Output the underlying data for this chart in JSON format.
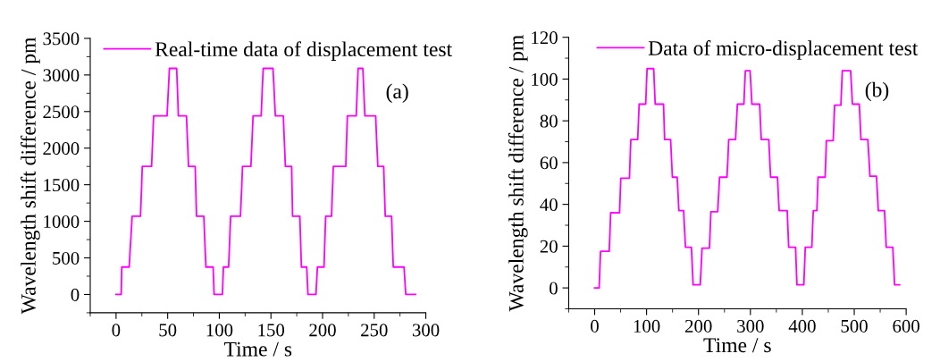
{
  "chart_data": [
    {
      "type": "line",
      "xlabel": "Time / s",
      "ylabel": "Wavelength shift difference / pm",
      "xlim": [
        -25,
        300
      ],
      "ylim": [
        -250,
        3500
      ],
      "xticks": [
        0,
        50,
        100,
        150,
        200,
        250,
        300
      ],
      "yticks": [
        0,
        500,
        1000,
        1500,
        2000,
        2500,
        3000,
        3500
      ],
      "grid": false,
      "legend": "top",
      "marker": "none",
      "line_style": "solid",
      "annotations": [
        "(a)"
      ],
      "series": [
        {
          "name": "Real-time data of displacement test",
          "color": "#ff00ff",
          "x": [
            0,
            5,
            5.5,
            12.7,
            15.6,
            23.7,
            25.4,
            34.4,
            36.4,
            49.4,
            51.7,
            58.7,
            60.4,
            68.2,
            70.2,
            76.6,
            78,
            85,
            87,
            94,
            95,
            103,
            104,
            109,
            111,
            120.5,
            122.5,
            130.6,
            132.7,
            140.5,
            142.5,
            152,
            154.3,
            162,
            164,
            170,
            171,
            178,
            179.5,
            184.7,
            185.8,
            193.6,
            195,
            201.4,
            203,
            208.7,
            210.4,
            222.5,
            224,
            232.6,
            234.4,
            239,
            241,
            251.4,
            253.5,
            259.2,
            260.7,
            266.8,
            268.5,
            278.9,
            280.6,
            290
          ],
          "values": [
            0,
            0,
            375,
            375,
            1070,
            1070,
            1750,
            1750,
            2440,
            2440,
            3090,
            3090,
            2440,
            2440,
            1750,
            1750,
            1070,
            1070,
            375,
            375,
            0,
            0,
            375,
            375,
            1070,
            1070,
            1750,
            1750,
            2440,
            2440,
            3090,
            3090,
            2440,
            2440,
            1750,
            1750,
            1070,
            1070,
            375,
            375,
            0,
            0,
            375,
            375,
            1070,
            1070,
            1750,
            1750,
            2440,
            2440,
            3090,
            3090,
            2440,
            2440,
            1750,
            1750,
            1070,
            1070,
            375,
            375,
            0,
            0
          ]
        }
      ]
    },
    {
      "type": "line",
      "xlabel": "Time / s",
      "ylabel": "Wavelength shift difference / pm",
      "xlim": [
        -50,
        600
      ],
      "ylim": [
        -10,
        120
      ],
      "xticks": [
        0,
        100,
        200,
        300,
        400,
        500,
        600
      ],
      "yticks": [
        0,
        20,
        40,
        60,
        80,
        100,
        120
      ],
      "grid": false,
      "legend": "top",
      "marker": "none",
      "line_style": "solid",
      "annotations": [
        "(b)"
      ],
      "series": [
        {
          "name": "Data of micro-displacement test",
          "color": "#ff00ff",
          "x": [
            0,
            8.6,
            11.4,
            28,
            30.9,
            48,
            50.3,
            66.9,
            69.7,
            82.9,
            85.7,
            98.3,
            101,
            113.7,
            116.6,
            132.6,
            134.9,
            146.3,
            149.7,
            158.9,
            162.3,
            171.4,
            174.9,
            186.3,
            189.7,
            203.4,
            206.9,
            221,
            224,
            237,
            240.6,
            254.9,
            258.3,
            271.4,
            274.9,
            287.4,
            290.3,
            299.4,
            302.9,
            317.7,
            321,
            335.4,
            338.9,
            352,
            355.4,
            370.9,
            373.7,
            386.9,
            389.7,
            402.9,
            405.7,
            418.3,
            421.1,
            428,
            430.3,
            444,
            446.3,
            459.4,
            462.3,
            474.3,
            477,
            493,
            496.6,
            509.7,
            513,
            526.3,
            530.3,
            542.9,
            546.3,
            558.3,
            561.7,
            574.3,
            577.7,
            587.4
          ],
          "values": [
            0,
            0,
            17.5,
            17.5,
            36,
            36,
            52.5,
            52.5,
            71,
            71,
            88,
            88,
            105,
            105,
            88,
            88,
            71,
            71,
            53,
            53,
            37,
            37,
            19.5,
            19.5,
            1.5,
            1.5,
            19,
            19,
            36.5,
            36.5,
            53,
            53,
            71,
            71,
            88,
            88,
            104,
            104,
            88,
            88,
            71,
            71,
            53,
            53,
            37,
            37,
            19.5,
            19.5,
            1.5,
            1.5,
            19.5,
            19.5,
            37,
            37,
            53,
            53,
            70.5,
            70.5,
            87.5,
            87.5,
            104,
            104,
            88,
            88,
            71,
            71,
            53.5,
            53.5,
            37,
            37,
            19.5,
            19.5,
            1.5,
            1.5
          ]
        }
      ]
    }
  ]
}
